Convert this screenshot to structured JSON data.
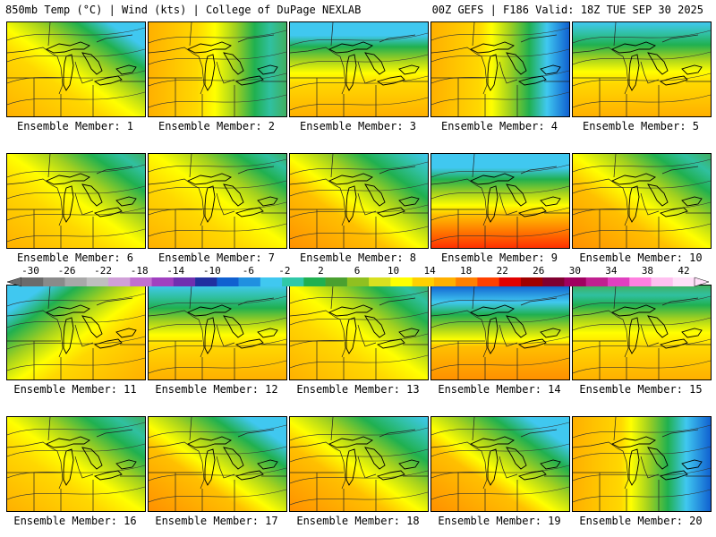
{
  "header": {
    "left": "850mb Temp (°C) | Wind (kts) | College of DuPage NEXLAB",
    "right": "00Z GEFS | F186 Valid: 18Z TUE SEP 30 2025"
  },
  "members": [
    {
      "label": "Ensemble Member: 1",
      "warm": 0.55,
      "cold": 0.55,
      "region": "ne"
    },
    {
      "label": "Ensemble Member: 2",
      "warm": 0.55,
      "cold": 0.45,
      "region": "e"
    },
    {
      "label": "Ensemble Member: 3",
      "warm": 0.6,
      "cold": 0.6,
      "region": "n"
    },
    {
      "label": "Ensemble Member: 4",
      "warm": 0.35,
      "cold": 0.75,
      "region": "e"
    },
    {
      "label": "Ensemble Member: 5",
      "warm": 0.45,
      "cold": 0.5,
      "region": "n"
    },
    {
      "label": "Ensemble Member: 6",
      "warm": 0.55,
      "cold": 0.3,
      "region": "ne"
    },
    {
      "label": "Ensemble Member: 7",
      "warm": 0.45,
      "cold": 0.2,
      "region": "ne"
    },
    {
      "label": "Ensemble Member: 8",
      "warm": 0.75,
      "cold": 0.5,
      "region": "ne"
    },
    {
      "label": "Ensemble Member: 9",
      "warm": 0.95,
      "cold": 0.65,
      "region": "n"
    },
    {
      "label": "Ensemble Member: 10",
      "warm": 0.7,
      "cold": 0.35,
      "region": "ne"
    },
    {
      "label": "Ensemble Member: 11",
      "warm": 0.6,
      "cold": 0.6,
      "region": "nw"
    },
    {
      "label": "Ensemble Member: 12",
      "warm": 0.55,
      "cold": 0.5,
      "region": "n"
    },
    {
      "label": "Ensemble Member: 13",
      "warm": 0.6,
      "cold": 0.3,
      "region": "ne"
    },
    {
      "label": "Ensemble Member: 14",
      "warm": 0.65,
      "cold": 0.85,
      "region": "n"
    },
    {
      "label": "Ensemble Member: 15",
      "warm": 0.5,
      "cold": 0.35,
      "region": "n"
    },
    {
      "label": "Ensemble Member: 16",
      "warm": 0.6,
      "cold": 0.4,
      "region": "ne"
    },
    {
      "label": "Ensemble Member: 17",
      "warm": 0.75,
      "cold": 0.65,
      "region": "ne"
    },
    {
      "label": "Ensemble Member: 18",
      "warm": 0.7,
      "cold": 0.5,
      "region": "ne"
    },
    {
      "label": "Ensemble Member: 19",
      "warm": 0.75,
      "cold": 0.7,
      "region": "ne"
    },
    {
      "label": "Ensemble Member: 20",
      "warm": 0.6,
      "cold": 0.85,
      "region": "e"
    }
  ],
  "colorbar": {
    "ticks": [
      "-30",
      "-26",
      "-22",
      "-18",
      "-14",
      "-10",
      "-6",
      "-2",
      "2",
      "6",
      "10",
      "14",
      "18",
      "22",
      "26",
      "30",
      "34",
      "38",
      "42"
    ],
    "colors": [
      "#6b6b6b",
      "#8a8a8a",
      "#a8a8a8",
      "#bfbfbf",
      "#d0a0d8",
      "#c070d0",
      "#a040c0",
      "#7030b0",
      "#2030a0",
      "#1060d0",
      "#2090e0",
      "#40c8f0",
      "#30c8a8",
      "#20b050",
      "#4aa030",
      "#90c020",
      "#d8e020",
      "#ffff00",
      "#ffd000",
      "#ffb000",
      "#ff8000",
      "#ff4000",
      "#e00000",
      "#a00000",
      "#800030",
      "#a00060",
      "#c02090",
      "#e040c0",
      "#ff80e0",
      "#ffc0f0",
      "#ffe0f8"
    ]
  }
}
